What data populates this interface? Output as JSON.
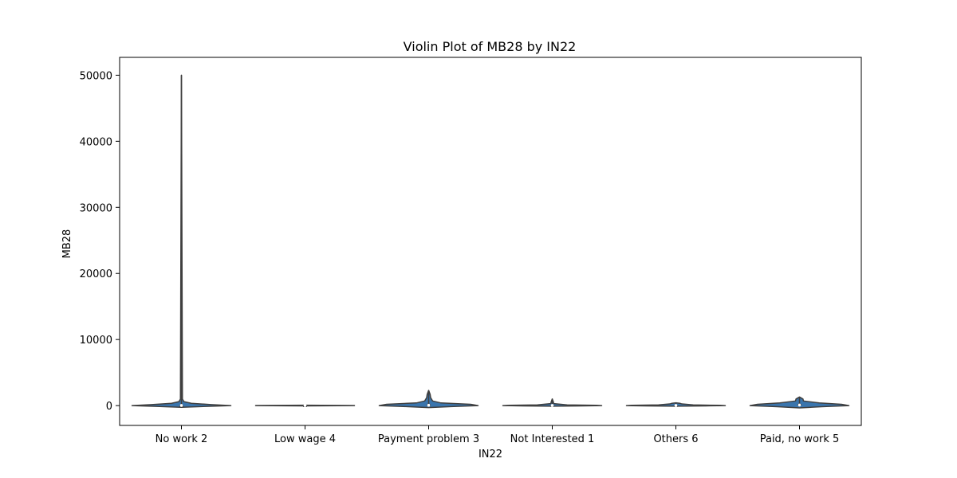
{
  "chart_data": {
    "type": "violin",
    "title": "Violin Plot of MB28 by IN22",
    "xlabel": "IN22",
    "ylabel": "MB28",
    "ylim": [
      -3000,
      52700
    ],
    "yticks": [
      0,
      10000,
      20000,
      30000,
      40000,
      50000
    ],
    "grid": false,
    "legend": "none",
    "fill_color": "#3a75ad",
    "edge_color": "#3f3f3f",
    "categories": [
      "No work 2",
      "Low wage 4",
      "Payment problem 3",
      "Not Interested 1",
      "Others 6",
      "Paid, no work 5"
    ],
    "series": [
      {
        "category": "No work 2",
        "min": 0,
        "max": 50000,
        "median": 20,
        "q1": 0,
        "q3": 60,
        "profile": [
          [
            -250,
            0.0
          ],
          [
            -120,
            0.5
          ],
          [
            0,
            1.0
          ],
          [
            150,
            0.6
          ],
          [
            350,
            0.2
          ],
          [
            600,
            0.05
          ],
          [
            1000,
            0.02
          ],
          [
            50000,
            0.0
          ]
        ]
      },
      {
        "category": "Low wage 4",
        "min": 0,
        "max": 50,
        "median": 20,
        "q1": 10,
        "q3": 30,
        "profile": [
          [
            -40,
            0.0
          ],
          [
            0,
            1.0
          ],
          [
            20,
            1.0
          ],
          [
            60,
            0.0
          ]
        ]
      },
      {
        "category": "Payment problem 3",
        "min": 0,
        "max": 2300,
        "median": 50,
        "q1": 0,
        "q3": 200,
        "profile": [
          [
            -300,
            0.0
          ],
          [
            -150,
            0.45
          ],
          [
            0,
            1.0
          ],
          [
            200,
            0.85
          ],
          [
            400,
            0.25
          ],
          [
            700,
            0.08
          ],
          [
            1200,
            0.04
          ],
          [
            1700,
            0.03
          ],
          [
            2300,
            0.0
          ]
        ]
      },
      {
        "category": "Not Interested 1",
        "min": 0,
        "max": 1000,
        "median": 20,
        "q1": 0,
        "q3": 50,
        "profile": [
          [
            -90,
            0.0
          ],
          [
            -40,
            0.6
          ],
          [
            0,
            1.0
          ],
          [
            40,
            0.9
          ],
          [
            100,
            0.3
          ],
          [
            300,
            0.03
          ],
          [
            600,
            0.02
          ],
          [
            1000,
            0.0
          ]
        ]
      },
      {
        "category": "Others 6",
        "min": 0,
        "max": 400,
        "median": 20,
        "q1": 0,
        "q3": 50,
        "profile": [
          [
            -90,
            0.0
          ],
          [
            -40,
            0.6
          ],
          [
            0,
            1.0
          ],
          [
            40,
            0.9
          ],
          [
            100,
            0.35
          ],
          [
            250,
            0.12
          ],
          [
            350,
            0.08
          ],
          [
            420,
            0.0
          ]
        ]
      },
      {
        "category": "Paid, no work 5",
        "min": 0,
        "max": 1300,
        "median": 80,
        "q1": 0,
        "q3": 250,
        "profile": [
          [
            -350,
            0.0
          ],
          [
            -170,
            0.45
          ],
          [
            0,
            1.0
          ],
          [
            200,
            0.85
          ],
          [
            400,
            0.4
          ],
          [
            700,
            0.08
          ],
          [
            1000,
            0.07
          ],
          [
            1300,
            0.0
          ]
        ]
      }
    ]
  }
}
